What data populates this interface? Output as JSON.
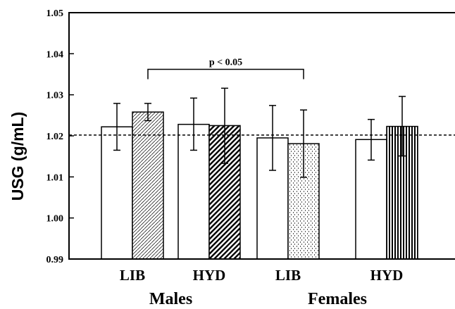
{
  "chart_data": {
    "type": "bar",
    "title": "",
    "xlabel": "",
    "ylabel": "USG (g/mL)",
    "ylim": [
      0.99,
      1.05
    ],
    "yticks": [
      "0.99",
      "1.00",
      "1.01",
      "1.02",
      "1.03",
      "1.04",
      "1.05"
    ],
    "categories": [
      "LIB",
      "HYD",
      "LIB",
      "HYD"
    ],
    "groups": [
      {
        "label": "Males",
        "categories": [
          0,
          1
        ]
      },
      {
        "label": "Females",
        "categories": [
          2,
          3
        ]
      }
    ],
    "bars": [
      {
        "category": 0,
        "slot": 0,
        "value": 1.0222,
        "err_low": 1.0165,
        "err_high": 1.0279,
        "fill": "open"
      },
      {
        "category": 0,
        "slot": 1,
        "value": 1.0258,
        "err_low": 1.0237,
        "err_high": 1.0279,
        "fill": "fine-hatch"
      },
      {
        "category": 1,
        "slot": 0,
        "value": 1.0228,
        "err_low": 1.0165,
        "err_high": 1.0292,
        "fill": "open"
      },
      {
        "category": 1,
        "slot": 1,
        "value": 1.0225,
        "err_low": 1.0133,
        "err_high": 1.0316,
        "fill": "bold-hatch"
      },
      {
        "category": 2,
        "slot": 0,
        "value": 1.0195,
        "err_low": 1.0116,
        "err_high": 1.0274,
        "fill": "open"
      },
      {
        "category": 2,
        "slot": 1,
        "value": 1.0181,
        "err_low": 1.0099,
        "err_high": 1.0263,
        "fill": "dots"
      },
      {
        "category": 3,
        "slot": 0,
        "value": 1.0191,
        "err_low": 1.0141,
        "err_high": 1.024,
        "fill": "open"
      },
      {
        "category": 3,
        "slot": 1,
        "value": 1.0223,
        "err_low": 1.0151,
        "err_high": 1.0296,
        "fill": "vertical-lines"
      }
    ],
    "reference_line": {
      "value": 1.0202,
      "style": "dashed"
    },
    "annotation": {
      "text": "p < 0.05",
      "from_bar": 1,
      "to_bar": 5,
      "level": 1.0362
    },
    "grid": false,
    "legend": "none",
    "colors": {
      "bar_stroke": "#000000",
      "background": "#ffffff"
    }
  }
}
